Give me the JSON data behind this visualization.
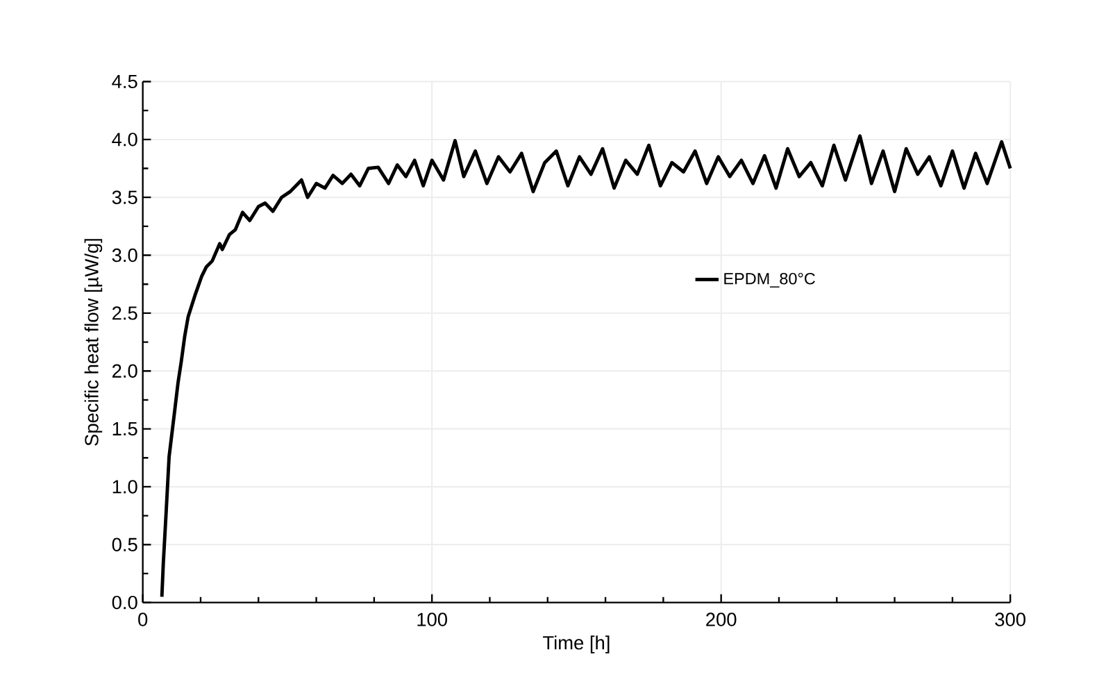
{
  "chart_data": {
    "type": "line",
    "xlabel": "Time [h]",
    "ylabel": "Specific heat flow [µW/g]",
    "xlim": [
      0,
      300
    ],
    "ylim": [
      0,
      4.5
    ],
    "xticks": [
      0,
      100,
      200,
      300
    ],
    "yticks": [
      {
        "value": 0,
        "label": "0.0"
      },
      {
        "value": 0.5,
        "label": "0.5"
      },
      {
        "value": 1,
        "label": "1.0"
      },
      {
        "value": 1.5,
        "label": "1.5"
      },
      {
        "value": 2,
        "label": "2.0"
      },
      {
        "value": 2.5,
        "label": "2.5"
      },
      {
        "value": 3,
        "label": "3.0"
      },
      {
        "value": 3.5,
        "label": "3.5"
      },
      {
        "value": 4,
        "label": "4.0"
      },
      {
        "value": 4.5,
        "label": "4.5"
      }
    ],
    "grid": true,
    "legend": "right",
    "marker": "none",
    "line_style": "solid",
    "series": [
      {
        "name": "EPDM_80°C",
        "color": "#000000",
        "x": [
          6.6,
          7.1,
          8.1,
          9.1,
          11,
          12.2,
          13.3,
          14.5,
          15.7,
          18,
          20.4,
          22,
          24,
          26.6,
          27.5,
          30,
          32,
          34.5,
          37,
          40,
          42.3,
          45,
          48,
          51,
          54.9,
          57,
          60,
          63,
          65.8,
          69,
          72,
          75,
          78,
          81.4,
          85,
          88,
          91,
          94,
          97,
          100,
          104,
          108,
          111,
          115,
          119,
          123,
          127,
          131,
          135,
          139,
          143,
          147,
          151,
          155,
          159,
          163,
          167,
          171,
          175,
          179,
          183,
          187,
          191,
          195,
          199,
          203,
          207,
          211,
          215,
          219,
          223,
          227,
          231,
          235,
          239,
          243,
          248,
          252,
          256,
          260,
          264,
          268,
          272,
          276,
          280,
          284,
          288,
          292,
          297,
          300
        ],
        "values": [
          0.05,
          0.34,
          0.79,
          1.26,
          1.65,
          1.9,
          2.08,
          2.3,
          2.47,
          2.65,
          2.82,
          2.9,
          2.95,
          3.1,
          3.05,
          3.18,
          3.22,
          3.37,
          3.3,
          3.42,
          3.45,
          3.38,
          3.5,
          3.55,
          3.65,
          3.5,
          3.62,
          3.58,
          3.69,
          3.62,
          3.7,
          3.6,
          3.75,
          3.76,
          3.62,
          3.78,
          3.68,
          3.82,
          3.6,
          3.82,
          3.65,
          3.99,
          3.68,
          3.9,
          3.62,
          3.85,
          3.72,
          3.88,
          3.55,
          3.8,
          3.9,
          3.6,
          3.85,
          3.7,
          3.92,
          3.58,
          3.82,
          3.7,
          3.95,
          3.6,
          3.8,
          3.72,
          3.9,
          3.62,
          3.85,
          3.68,
          3.82,
          3.62,
          3.86,
          3.58,
          3.92,
          3.68,
          3.8,
          3.6,
          3.95,
          3.65,
          4.03,
          3.62,
          3.9,
          3.55,
          3.92,
          3.7,
          3.85,
          3.6,
          3.9,
          3.58,
          3.88,
          3.62,
          3.98,
          3.75
        ]
      }
    ]
  }
}
